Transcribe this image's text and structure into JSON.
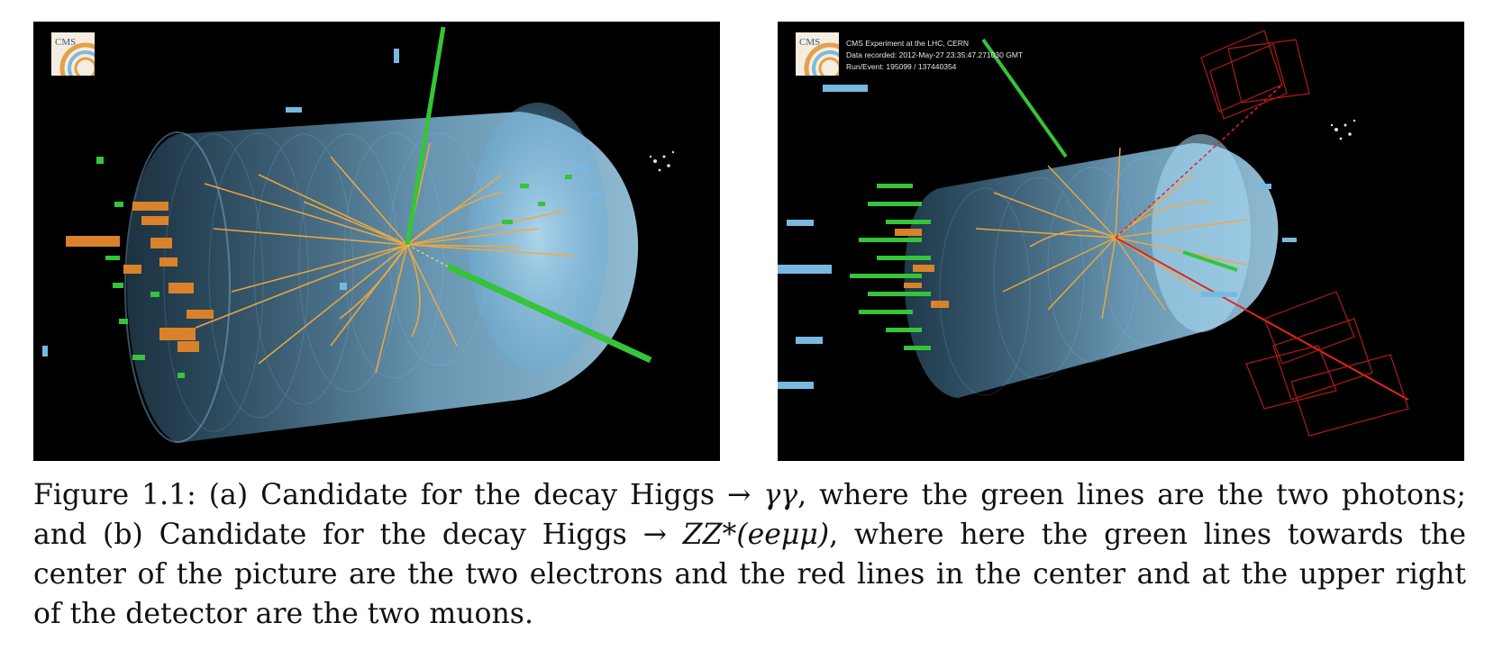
{
  "panel_a": {
    "logo_text": "CMS"
  },
  "panel_b": {
    "logo_text": "CMS",
    "info_lines": [
      "CMS Experiment at the LHC, CERN",
      "Data recorded: 2012-May-27 23:35:47.271030 GMT",
      "Run/Event: 195099 / 137440354"
    ]
  },
  "caption": {
    "lines": [
      [
        "Figure 1.1: (a) Candidate for the decay Higgs → ",
        "γγ",
        ", where the green lines are the two photons;"
      ],
      [
        "and (b) Candidate for the decay Higgs → ",
        "ZZ*(eeμμ)",
        ", where here the green lines towards the"
      ],
      [
        "center of the picture are the two electrons and the red lines in the center and at the upper right",
        "",
        ""
      ],
      [
        "of the detector are the two muons.",
        "",
        ""
      ]
    ]
  },
  "colors": {
    "detector_blue": "#7fc4ea",
    "track_orange": "#f2a93b",
    "photon_green": "#35c43a",
    "muon_red": "#e0261c",
    "hcal_orange": "#d9822b"
  }
}
